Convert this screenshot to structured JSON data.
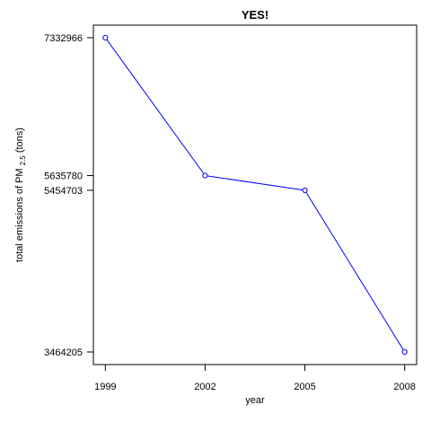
{
  "chart_data": {
    "type": "line",
    "title": "YES!",
    "xlabel": "year",
    "ylabel": {
      "prefix": "total emissions of PM",
      "subscript": "2.5",
      "suffix": "(tons)"
    },
    "x": [
      1999,
      2002,
      2005,
      2008
    ],
    "series": [
      {
        "values": [
          7332966,
          5635780,
          5454703,
          3464205
        ],
        "color": "#0000ff",
        "marker": "open-circle"
      }
    ],
    "x_ticks": [
      "1999",
      "2002",
      "2005",
      "2008"
    ],
    "y_ticks": [
      "7332966",
      "5635780",
      "5454703",
      "3464205"
    ],
    "xlim": [
      1998.64,
      2008.36
    ],
    "ylim": [
      3309455,
      7487716
    ],
    "grid": false,
    "legend": "none"
  }
}
